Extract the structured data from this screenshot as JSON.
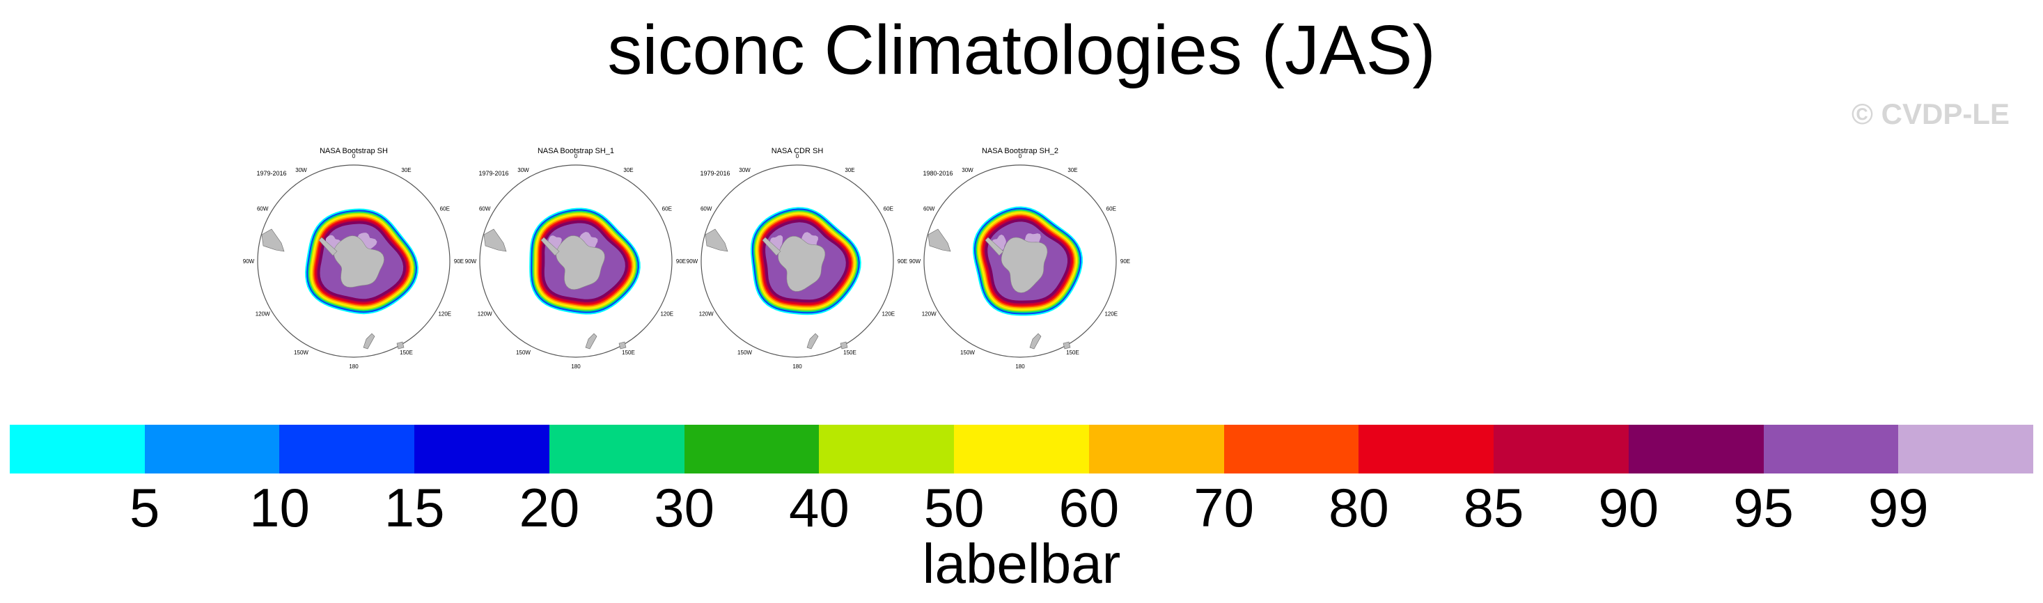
{
  "title": "siconc Climatologies (JAS)",
  "watermark": "© CVDP-LE",
  "panels": [
    {
      "name": "NASA Bootstrap SH",
      "years": "1979-2016"
    },
    {
      "name": "NASA Bootstrap SH_1",
      "years": "1979-2016"
    },
    {
      "name": "NASA CDR SH",
      "years": "1979-2016"
    },
    {
      "name": "NASA Bootstrap SH_2",
      "years": "1980-2016"
    }
  ],
  "longitude_labels": [
    "0",
    "30E",
    "60E",
    "90E",
    "120E",
    "150E",
    "180",
    "150W",
    "120W",
    "90W",
    "60W",
    "30W"
  ],
  "colorbar": {
    "title": "labelbar",
    "levels": [
      "5",
      "10",
      "15",
      "20",
      "30",
      "40",
      "50",
      "60",
      "70",
      "80",
      "85",
      "90",
      "95",
      "99"
    ],
    "colors": [
      "#00ffff",
      "#0090ff",
      "#0040ff",
      "#0000e0",
      "#00d880",
      "#20b010",
      "#b8e800",
      "#fff000",
      "#ffb800",
      "#ff4800",
      "#e80018",
      "#c00038",
      "#800060",
      "#9050b0",
      "#c8a8d8"
    ]
  },
  "map_colors": {
    "land": "#bdbdbd",
    "ocean": "#ffffff"
  }
}
